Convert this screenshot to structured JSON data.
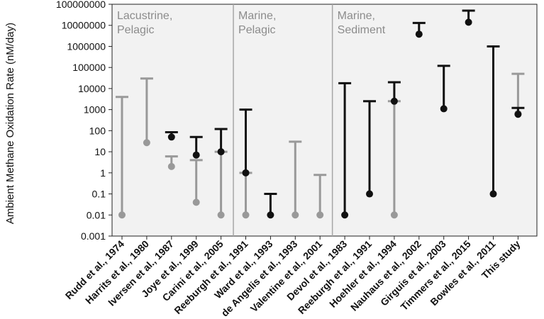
{
  "chart_data": {
    "type": "scatter",
    "ylabel": "Ambient Methane Oxidation Rate (nM/day)",
    "yscale": "log",
    "ylim": [
      0.001,
      100000000
    ],
    "yticks": [
      "0.001",
      "0.01",
      "0.1",
      "1",
      "10",
      "100",
      "1000",
      "10000",
      "100000",
      "1000000",
      "10000000",
      "100000000"
    ],
    "grid": false,
    "regions": [
      {
        "label_lines": [
          "Lacustrine,",
          "Pelagic"
        ],
        "start": 0,
        "end": 4
      },
      {
        "label_lines": [
          "Marine,",
          "Pelagic"
        ],
        "start": 5,
        "end": 8
      },
      {
        "label_lines": [
          "Marine,",
          "Sediment"
        ],
        "start": 9,
        "end": 17
      }
    ],
    "colors": {
      "black": "#111111",
      "gray": "#999999",
      "panel": "#f2f2f2",
      "divider": "#a6a6a6"
    },
    "studies": [
      {
        "label": "Rudd et al., 1974",
        "color": "gray",
        "point": 0.01,
        "cap": 4000
      },
      {
        "label": "Harrits et al., 1980",
        "color": "gray",
        "point": 27,
        "cap": 30000
      },
      {
        "label": "Iversen et al., 1987",
        "color": "black",
        "point": 50,
        "cap": 85,
        "extra_color": "gray",
        "extra_point": 2,
        "extra_cap": 6
      },
      {
        "label": "Joye et al., 1999",
        "color": "black",
        "point": 7,
        "cap": 50,
        "extra_color": "gray",
        "extra_point": 0.04,
        "extra_cap": 4
      },
      {
        "label": "Carini et al., 2005",
        "color": "black",
        "point": 10,
        "cap": 120,
        "extra_color": "gray",
        "extra_point": 0.01,
        "extra_cap": 10
      },
      {
        "label": "Reeburgh et al., 1991",
        "color": "black",
        "point": 1,
        "cap": 1000,
        "extra_color": "gray",
        "extra_point": 0.01,
        "extra_cap": 1
      },
      {
        "label": "Ward et al., 1993",
        "color": "black",
        "point": 0.01,
        "cap": 0.1
      },
      {
        "label": "de Angelis et al., 1993",
        "color": "gray",
        "point": 0.01,
        "cap": 30
      },
      {
        "label": "Valentine et al., 2001",
        "color": "gray",
        "point": 0.01,
        "cap": 0.8
      },
      {
        "label": "Devol et al., 1983",
        "color": "black",
        "point": 0.01,
        "cap": 18000
      },
      {
        "label": "Reeburgh et al., 1991",
        "color": "black",
        "point": 0.1,
        "cap": 2500
      },
      {
        "label": "Hoehler et al., 1994",
        "color": "black",
        "point": 2500,
        "cap": 20000,
        "extra_color": "gray",
        "extra_point": 0.01,
        "extra_cap": 2500
      },
      {
        "label": "Nauhaus et al., 2002",
        "color": "black",
        "point": 3800000,
        "cap": 13000000
      },
      {
        "label": "Girguis et al., 2003",
        "color": "black",
        "point": 1100,
        "cap": 120000
      },
      {
        "label": "Timmers et al., 2015",
        "color": "black",
        "point": 14000000,
        "cap": 50000000
      },
      {
        "label": "Bowles et al., 2011",
        "color": "black",
        "point": 0.1,
        "cap": 1000000
      },
      {
        "label": "This study",
        "color": "gray",
        "point": 650,
        "cap": 50000,
        "extra_color": "black",
        "extra_point": 600,
        "extra_cap": 1200
      }
    ]
  }
}
